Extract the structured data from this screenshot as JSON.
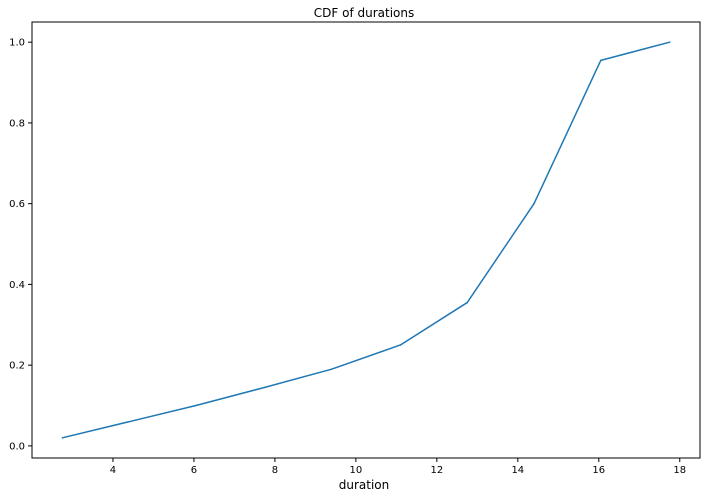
{
  "chart_data": {
    "type": "line",
    "title": "CDF of durations",
    "xlabel": "duration",
    "ylabel": "",
    "xlim": [
      2.0,
      18.5
    ],
    "ylim": [
      -0.03,
      1.05
    ],
    "xticks": [
      4,
      6,
      8,
      10,
      12,
      14,
      16,
      18
    ],
    "yticks": [
      0.0,
      0.2,
      0.4,
      0.6,
      0.8,
      1.0
    ],
    "grid": false,
    "legend": "none",
    "series": [
      {
        "color": "#1f77b4",
        "x": [
          2.75,
          4.4,
          6.05,
          7.75,
          9.4,
          11.1,
          12.75,
          14.4,
          16.05,
          17.75
        ],
        "y": [
          0.02,
          0.06,
          0.1,
          0.145,
          0.19,
          0.25,
          0.355,
          0.6,
          0.955,
          1.0
        ]
      }
    ]
  }
}
